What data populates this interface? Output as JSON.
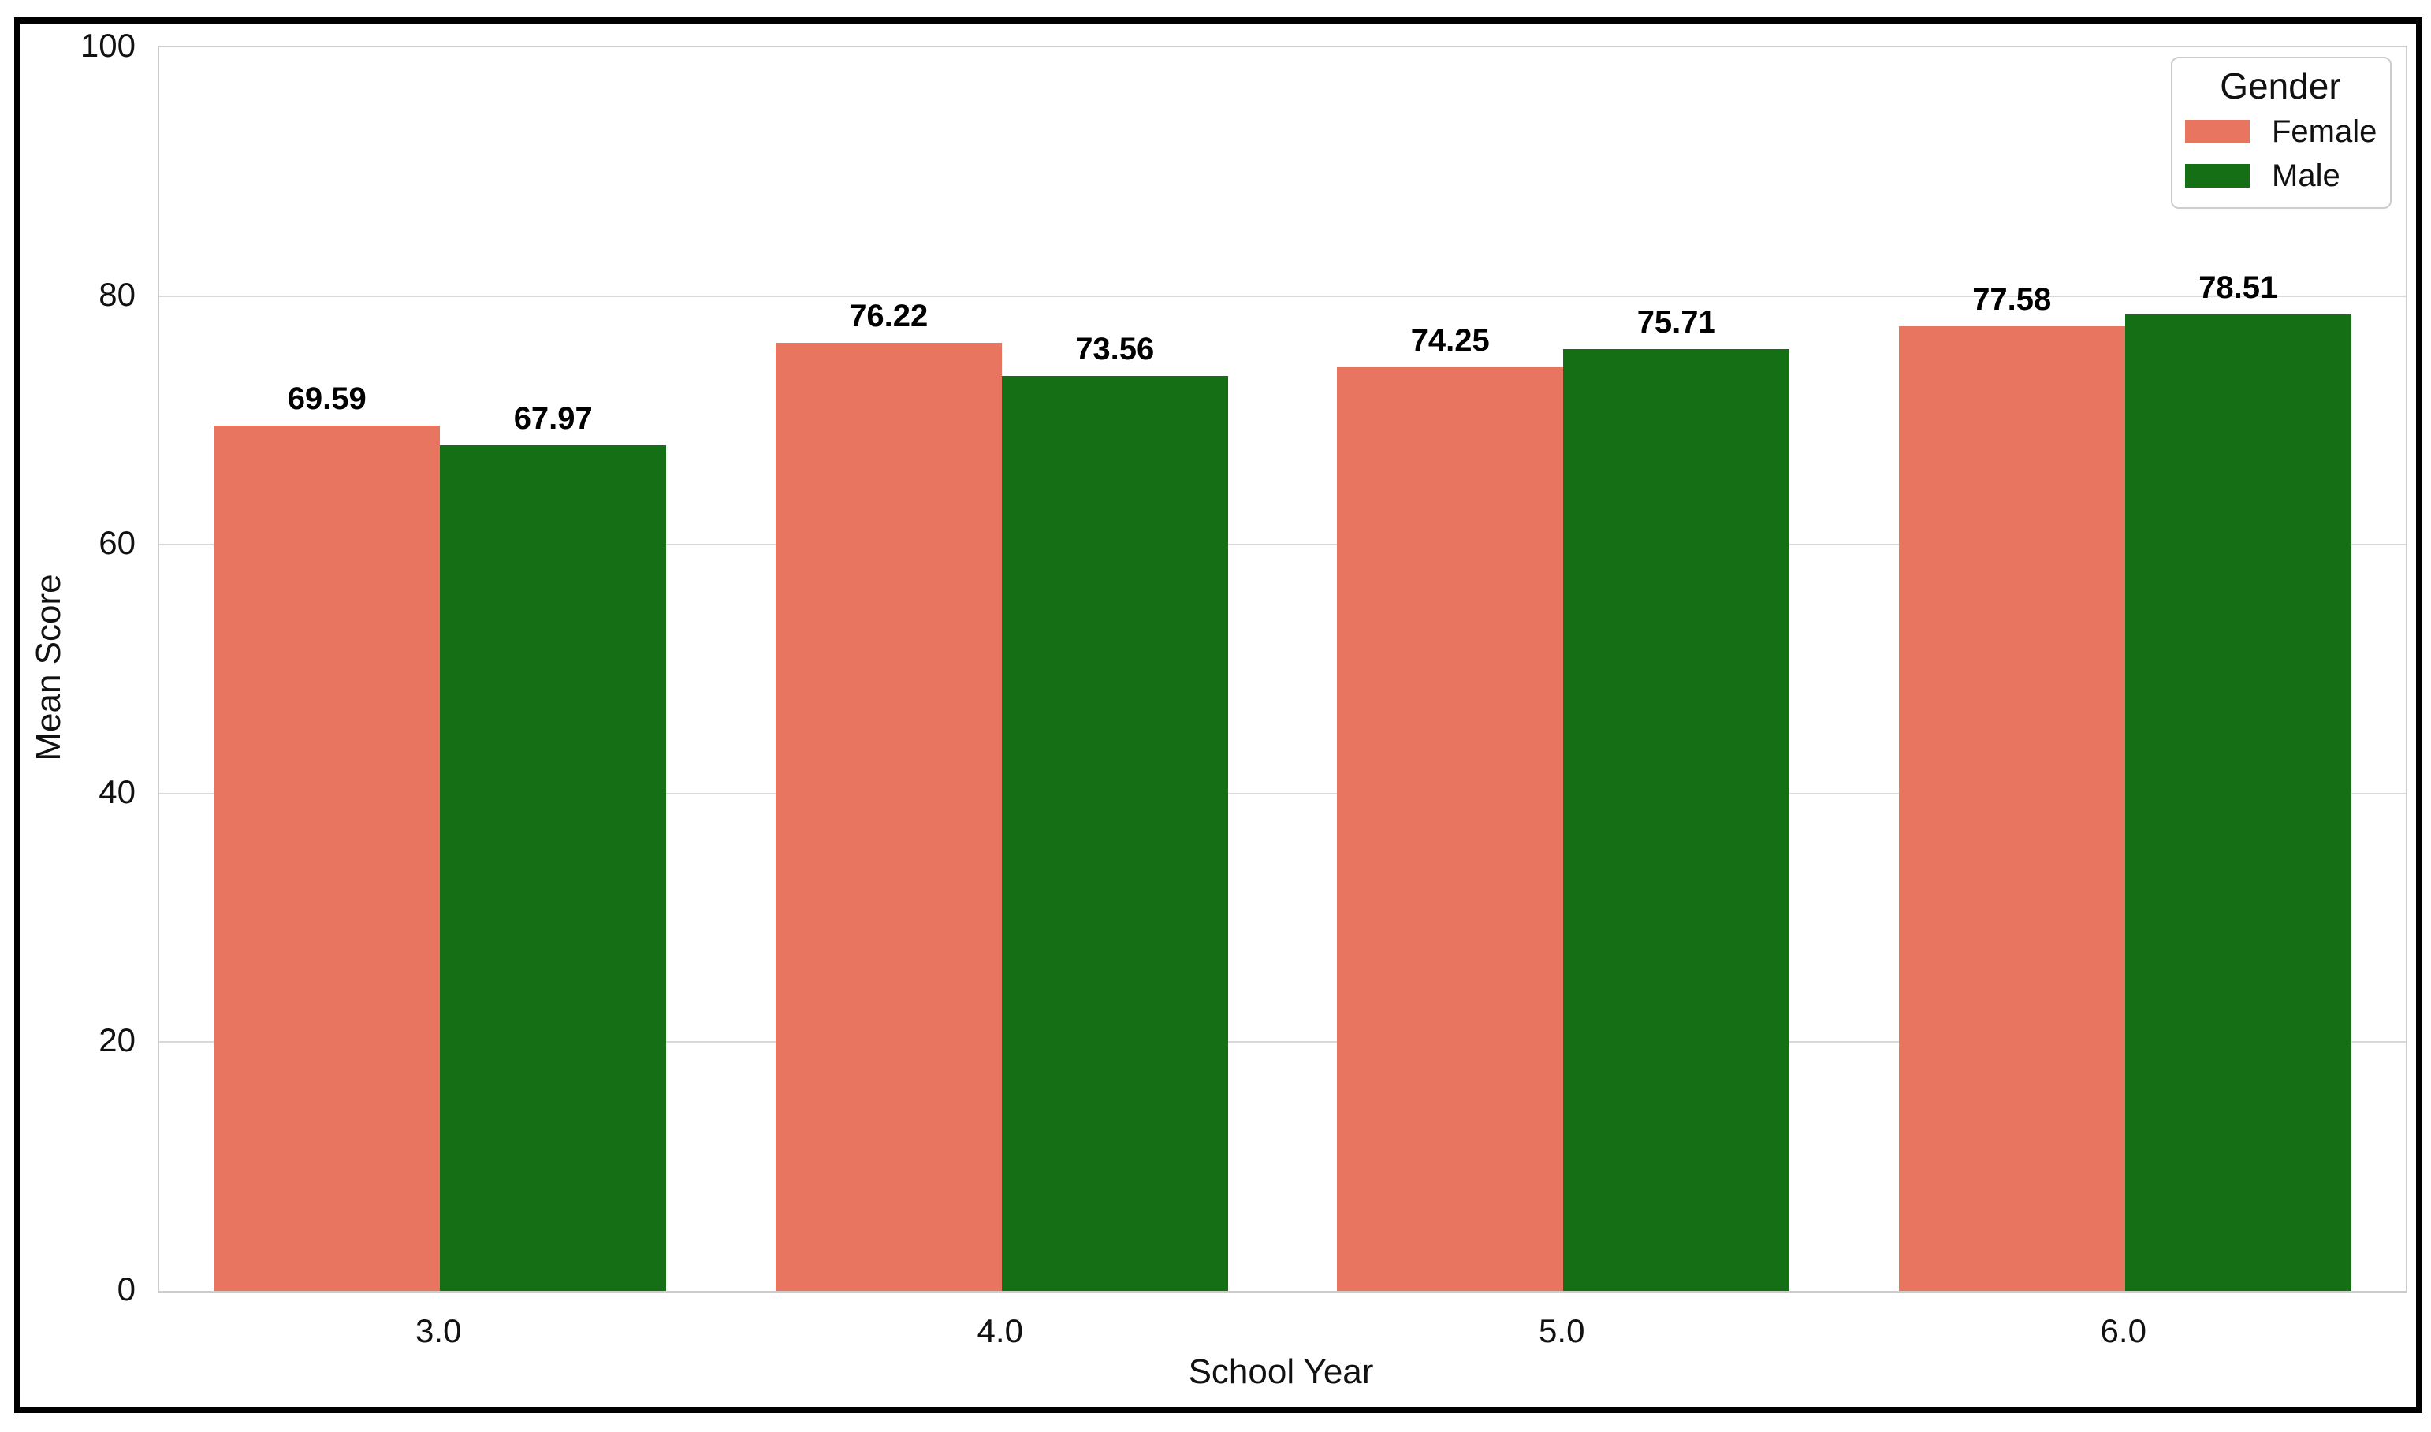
{
  "chart_data": {
    "type": "bar",
    "title": "",
    "categories": [
      "3.0",
      "4.0",
      "5.0",
      "6.0"
    ],
    "series": [
      {
        "name": "Female",
        "color": "#E8755F",
        "values": [
          69.59,
          76.22,
          74.25,
          77.58
        ]
      },
      {
        "name": "Male",
        "color": "#157015",
        "values": [
          67.97,
          73.56,
          75.71,
          78.51
        ]
      }
    ],
    "bar_value_labels": {
      "Female": [
        "69.59",
        "76.22",
        "74.25",
        "77.58"
      ],
      "Male": [
        "67.97",
        "73.56",
        "75.71",
        "78.51"
      ]
    },
    "xlabel": "School Year",
    "ylabel": "Mean Score",
    "ylim": [
      0,
      100
    ],
    "yticks": [
      "0",
      "20",
      "40",
      "60",
      "80",
      "100"
    ],
    "grid": "horizontal",
    "legend": {
      "title": "Gender",
      "position": "upper-right",
      "items": [
        {
          "label": "Female",
          "color": "#E8755F"
        },
        {
          "label": "Male",
          "color": "#157015"
        }
      ]
    }
  },
  "colors": {
    "female_bar": "#E8755F",
    "male_bar": "#157015",
    "gridline": "#D9D9D9",
    "spine": "#CCCCCC",
    "tick_text": "#111111",
    "figure_border": "#000000"
  }
}
